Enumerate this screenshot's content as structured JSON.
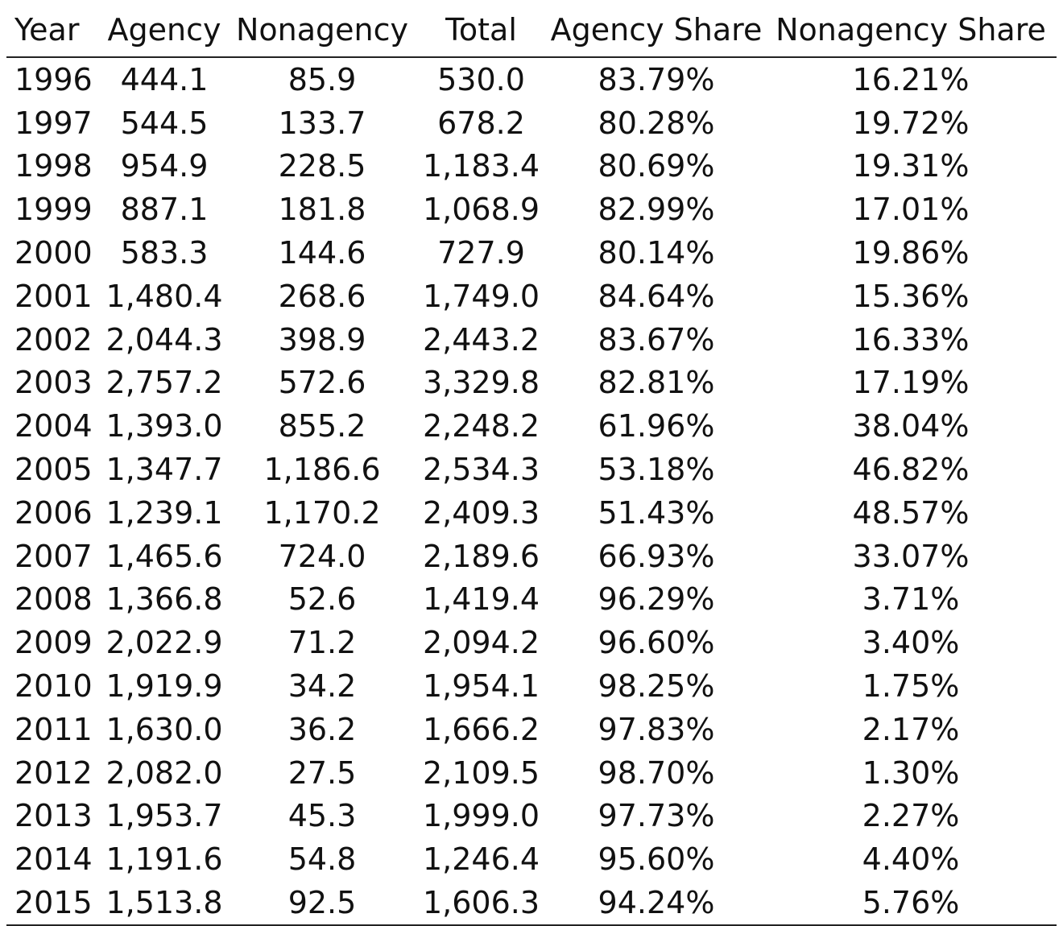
{
  "table": {
    "headers": [
      "Year",
      "Agency",
      "Nonagency",
      "Total",
      "Agency Share",
      "Nonagency Share"
    ],
    "rows": [
      [
        "1996",
        "444.1",
        "85.9",
        "530.0",
        "83.79%",
        "16.21%"
      ],
      [
        "1997",
        "544.5",
        "133.7",
        "678.2",
        "80.28%",
        "19.72%"
      ],
      [
        "1998",
        "954.9",
        "228.5",
        "1,183.4",
        "80.69%",
        "19.31%"
      ],
      [
        "1999",
        "887.1",
        "181.8",
        "1,068.9",
        "82.99%",
        "17.01%"
      ],
      [
        "2000",
        "583.3",
        "144.6",
        "727.9",
        "80.14%",
        "19.86%"
      ],
      [
        "2001",
        "1,480.4",
        "268.6",
        "1,749.0",
        "84.64%",
        "15.36%"
      ],
      [
        "2002",
        "2,044.3",
        "398.9",
        "2,443.2",
        "83.67%",
        "16.33%"
      ],
      [
        "2003",
        "2,757.2",
        "572.6",
        "3,329.8",
        "82.81%",
        "17.19%"
      ],
      [
        "2004",
        "1,393.0",
        "855.2",
        "2,248.2",
        "61.96%",
        "38.04%"
      ],
      [
        "2005",
        "1,347.7",
        "1,186.6",
        "2,534.3",
        "53.18%",
        "46.82%"
      ],
      [
        "2006",
        "1,239.1",
        "1,170.2",
        "2,409.3",
        "51.43%",
        "48.57%"
      ],
      [
        "2007",
        "1,465.6",
        "724.0",
        "2,189.6",
        "66.93%",
        "33.07%"
      ],
      [
        "2008",
        "1,366.8",
        "52.6",
        "1,419.4",
        "96.29%",
        "3.71%"
      ],
      [
        "2009",
        "2,022.9",
        "71.2",
        "2,094.2",
        "96.60%",
        "3.40%"
      ],
      [
        "2010",
        "1,919.9",
        "34.2",
        "1,954.1",
        "98.25%",
        "1.75%"
      ],
      [
        "2011",
        "1,630.0",
        "36.2",
        "1,666.2",
        "97.83%",
        "2.17%"
      ],
      [
        "2012",
        "2,082.0",
        "27.5",
        "2,109.5",
        "98.70%",
        "1.30%"
      ],
      [
        "2013",
        "1,953.7",
        "45.3",
        "1,999.0",
        "97.73%",
        "2.27%"
      ],
      [
        "2014",
        "1,191.6",
        "54.8",
        "1,246.4",
        "95.60%",
        "4.40%"
      ],
      [
        "2015",
        "1,513.8",
        "92.5",
        "1,606.3",
        "94.24%",
        "5.76%"
      ]
    ]
  }
}
